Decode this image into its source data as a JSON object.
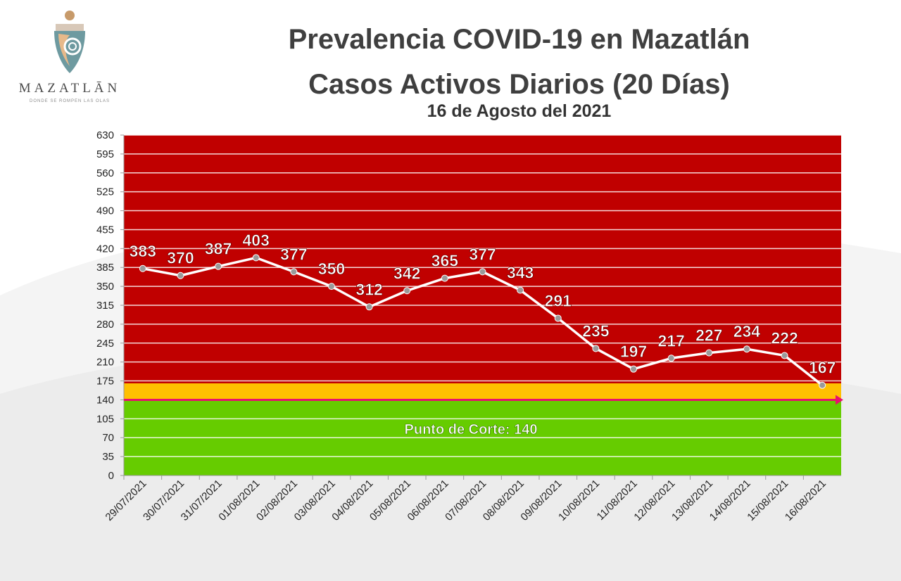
{
  "logo": {
    "name": "MAZATLĀN",
    "tagline": "DONDE SE ROMPEN LAS OLAS"
  },
  "header": {
    "title_line1": "Prevalencia COVID-19 en Mazatlán",
    "title_line2": "Casos Activos Diarios (20 Días)",
    "date": "16 de Agosto del 2021"
  },
  "colors": {
    "red_zone": "#c00000",
    "orange_zone": "#ffc000",
    "green_zone": "#66cc00",
    "cutoff_line": "#e8106e",
    "series_line": "#ffffff",
    "point": "#9a9a9a"
  },
  "chart_data": {
    "type": "line",
    "title": "Prevalencia COVID-19 en Mazatlán",
    "subtitle": "Casos Activos Diarios (20 Días)",
    "xlabel": "",
    "ylabel": "",
    "ylim": [
      0,
      630
    ],
    "y_ticks": [
      0,
      35,
      70,
      105,
      140,
      175,
      210,
      245,
      280,
      315,
      350,
      385,
      420,
      455,
      490,
      525,
      560,
      595,
      630
    ],
    "grid": true,
    "categories": [
      "29/07/2021",
      "30/07/2021",
      "31/07/2021",
      "01/08/2021",
      "02/08/2021",
      "03/08/2021",
      "04/08/2021",
      "05/08/2021",
      "06/08/2021",
      "07/08/2021",
      "08/08/2021",
      "09/08/2021",
      "10/08/2021",
      "11/08/2021",
      "12/08/2021",
      "13/08/2021",
      "14/08/2021",
      "15/08/2021",
      "16/08/2021"
    ],
    "series": [
      {
        "values": [
          383,
          370,
          387,
          403,
          377,
          350,
          312,
          342,
          365,
          377,
          343,
          291,
          235,
          197,
          217,
          227,
          234,
          222,
          167
        ]
      }
    ],
    "bands": [
      {
        "from": 0,
        "to": 140,
        "color": "green"
      },
      {
        "from": 140,
        "to": 170,
        "color": "orange"
      },
      {
        "from": 170,
        "to": 630,
        "color": "red"
      }
    ],
    "cutoff": {
      "value": 140,
      "label": "Punto de Corte: 140"
    }
  }
}
